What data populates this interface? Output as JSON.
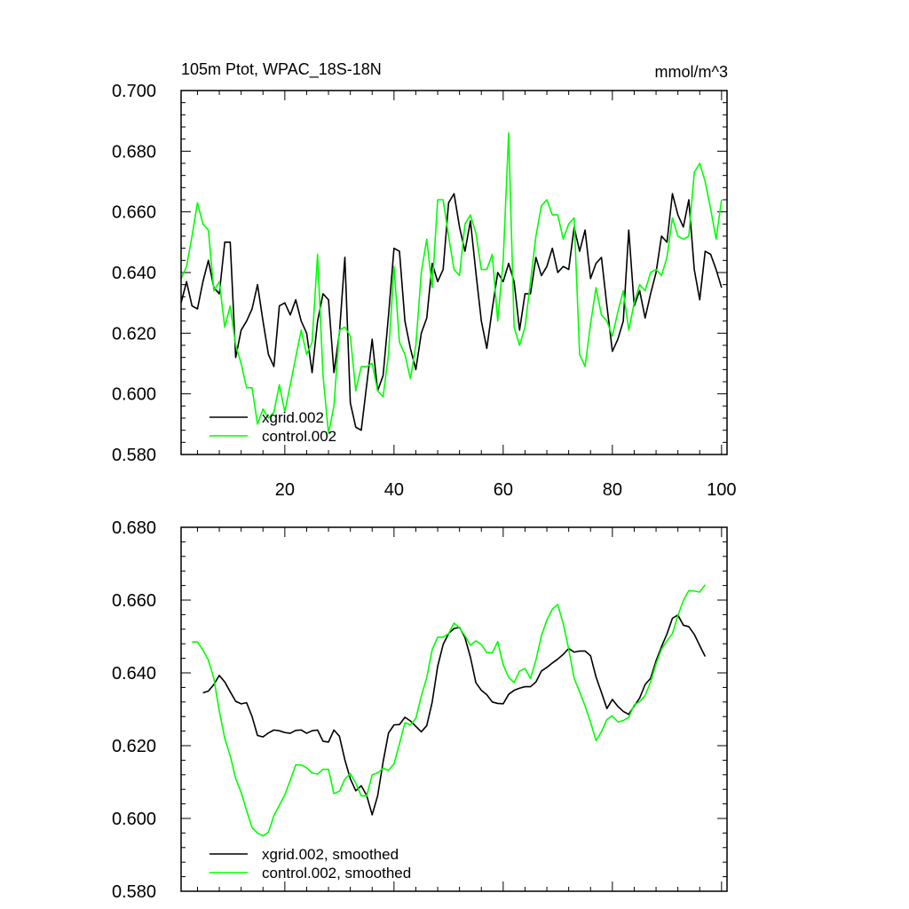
{
  "chart_data": [
    {
      "type": "line",
      "title": "105m Ptot, WPAC_18S-18N",
      "units": "mmol/m^3",
      "xlim": [
        1,
        101
      ],
      "ylim": [
        0.58,
        0.7
      ],
      "x_ticks": [
        20,
        40,
        60,
        80,
        100
      ],
      "x_tick_labels": [
        "20",
        "40",
        "60",
        "80",
        "100"
      ],
      "y_ticks": [
        0.58,
        0.6,
        0.62,
        0.64,
        0.66,
        0.68,
        0.7
      ],
      "y_tick_labels": [
        "0.580",
        "0.600",
        "0.620",
        "0.640",
        "0.660",
        "0.680",
        "0.700"
      ],
      "legend_position": "bottom-left",
      "series": [
        {
          "name": "xgrid.002",
          "color": "#000000",
          "x_start": 1,
          "values": [
            0.63,
            0.637,
            0.629,
            0.628,
            0.637,
            0.644,
            0.635,
            0.633,
            0.65,
            0.65,
            0.612,
            0.621,
            0.624,
            0.628,
            0.636,
            0.624,
            0.613,
            0.609,
            0.629,
            0.63,
            0.626,
            0.631,
            0.624,
            0.62,
            0.607,
            0.624,
            0.633,
            0.631,
            0.607,
            0.62,
            0.645,
            0.597,
            0.589,
            0.588,
            0.603,
            0.618,
            0.601,
            0.606,
            0.626,
            0.648,
            0.647,
            0.624,
            0.615,
            0.608,
            0.62,
            0.625,
            0.643,
            0.637,
            0.641,
            0.663,
            0.666,
            0.655,
            0.647,
            0.657,
            0.64,
            0.624,
            0.615,
            0.628,
            0.64,
            0.637,
            0.643,
            0.637,
            0.621,
            0.633,
            0.633,
            0.645,
            0.639,
            0.642,
            0.648,
            0.64,
            0.642,
            0.641,
            0.655,
            0.647,
            0.654,
            0.638,
            0.643,
            0.645,
            0.629,
            0.614,
            0.618,
            0.624,
            0.654,
            0.629,
            0.634,
            0.625,
            0.633,
            0.64,
            0.652,
            0.65,
            0.666,
            0.659,
            0.655,
            0.664,
            0.641,
            0.631,
            0.647,
            0.646,
            0.641,
            0.635
          ]
        },
        {
          "name": "control.002",
          "color": "#00ff00",
          "x_start": 1,
          "values": [
            0.638,
            0.642,
            0.652,
            0.663,
            0.656,
            0.654,
            0.634,
            0.637,
            0.622,
            0.629,
            0.616,
            0.61,
            0.602,
            0.602,
            0.59,
            0.595,
            0.592,
            0.594,
            0.603,
            0.594,
            0.603,
            0.612,
            0.621,
            0.613,
            0.617,
            0.646,
            0.606,
            0.587,
            0.596,
            0.621,
            0.622,
            0.619,
            0.601,
            0.609,
            0.609,
            0.61,
            0.601,
            0.599,
            0.613,
            0.642,
            0.617,
            0.613,
            0.605,
            0.616,
            0.64,
            0.651,
            0.635,
            0.664,
            0.664,
            0.652,
            0.641,
            0.639,
            0.656,
            0.659,
            0.653,
            0.641,
            0.641,
            0.646,
            0.624,
            0.644,
            0.686,
            0.622,
            0.616,
            0.622,
            0.637,
            0.652,
            0.662,
            0.664,
            0.659,
            0.659,
            0.651,
            0.656,
            0.658,
            0.613,
            0.609,
            0.623,
            0.635,
            0.626,
            0.624,
            0.619,
            0.627,
            0.634,
            0.621,
            0.63,
            0.636,
            0.634,
            0.64,
            0.641,
            0.639,
            0.645,
            0.658,
            0.652,
            0.651,
            0.652,
            0.673,
            0.676,
            0.67,
            0.661,
            0.651,
            0.664
          ]
        }
      ]
    },
    {
      "type": "line",
      "title": "",
      "xlim": [
        1,
        101
      ],
      "ylim": [
        0.58,
        0.68
      ],
      "x_ticks": [
        20,
        40,
        60,
        80,
        100
      ],
      "x_tick_labels": [],
      "y_ticks": [
        0.58,
        0.6,
        0.62,
        0.64,
        0.66,
        0.68
      ],
      "y_tick_labels": [
        "0.580",
        "0.600",
        "0.620",
        "0.640",
        "0.660",
        "0.680"
      ],
      "legend_position": "bottom-left",
      "series": [
        {
          "name": "xgrid.002, smoothed",
          "color": "#000000",
          "x_start": 5,
          "values": [
            0.6345,
            0.635,
            0.6368,
            0.6393,
            0.6375,
            0.6348,
            0.6322,
            0.6315,
            0.6318,
            0.628,
            0.6228,
            0.6224,
            0.6235,
            0.6243,
            0.6241,
            0.6236,
            0.6234,
            0.6242,
            0.6243,
            0.6234,
            0.6241,
            0.6243,
            0.6212,
            0.621,
            0.6243,
            0.6226,
            0.6161,
            0.6109,
            0.6076,
            0.609,
            0.6063,
            0.601,
            0.6062,
            0.6155,
            0.6235,
            0.6257,
            0.6258,
            0.6278,
            0.6268,
            0.6253,
            0.6238,
            0.6255,
            0.632,
            0.6418,
            0.6478,
            0.6508,
            0.6522,
            0.6525,
            0.6497,
            0.6443,
            0.6373,
            0.6352,
            0.634,
            0.632,
            0.6316,
            0.6315,
            0.6341,
            0.6352,
            0.6358,
            0.6362,
            0.6362,
            0.6375,
            0.6405,
            0.6415,
            0.6427,
            0.6438,
            0.6451,
            0.6467,
            0.6457,
            0.646,
            0.646,
            0.6447,
            0.6389,
            0.6346,
            0.6302,
            0.6327,
            0.6308,
            0.6294,
            0.6286,
            0.6309,
            0.6331,
            0.6368,
            0.6385,
            0.6433,
            0.6472,
            0.6507,
            0.655,
            0.6559,
            0.6531,
            0.6527,
            0.6506,
            0.6475,
            0.6445
          ]
        },
        {
          "name": "control.002, smoothed",
          "color": "#00ff00",
          "x_start": 3,
          "values": [
            0.6485,
            0.6485,
            0.6463,
            0.6435,
            0.6385,
            0.6295,
            0.622,
            0.6172,
            0.611,
            0.6072,
            0.6022,
            0.5975,
            0.596,
            0.5952,
            0.5962,
            0.6008,
            0.6036,
            0.6065,
            0.6105,
            0.6147,
            0.6147,
            0.6139,
            0.6125,
            0.6122,
            0.6135,
            0.6135,
            0.6068,
            0.6075,
            0.6108,
            0.6123,
            0.6097,
            0.6062,
            0.6062,
            0.612,
            0.6125,
            0.6138,
            0.6132,
            0.615,
            0.6205,
            0.6263,
            0.6257,
            0.6275,
            0.6336,
            0.6387,
            0.6464,
            0.6498,
            0.6498,
            0.6508,
            0.6537,
            0.6523,
            0.6502,
            0.6476,
            0.6488,
            0.6478,
            0.6456,
            0.6455,
            0.6486,
            0.6422,
            0.6388,
            0.6373,
            0.6405,
            0.6412,
            0.6385,
            0.6435,
            0.6502,
            0.6545,
            0.6575,
            0.6588,
            0.6535,
            0.6465,
            0.6385,
            0.6348,
            0.6309,
            0.6265,
            0.6214,
            0.6238,
            0.6272,
            0.6282,
            0.6265,
            0.6269,
            0.6278,
            0.6312,
            0.6321,
            0.6338,
            0.6375,
            0.6425,
            0.6465,
            0.6488,
            0.6508,
            0.6557,
            0.6599,
            0.6626,
            0.6625,
            0.6622,
            0.6642
          ]
        }
      ]
    }
  ]
}
